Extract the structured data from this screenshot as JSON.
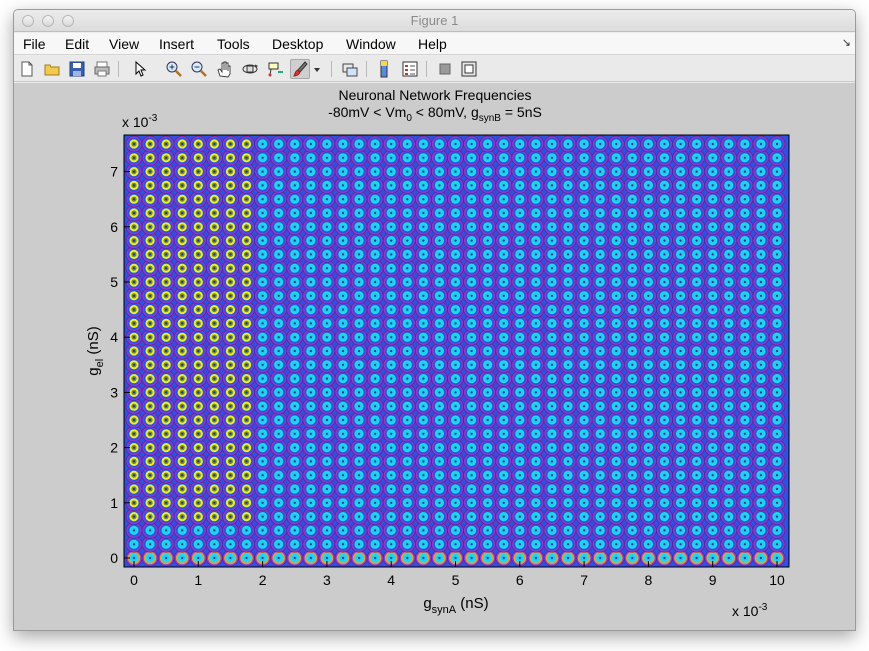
{
  "window": {
    "title": "Figure 1"
  },
  "menu": {
    "file": "File",
    "edit": "Edit",
    "view": "View",
    "insert": "Insert",
    "tools": "Tools",
    "desktop": "Desktop",
    "window": "Window",
    "help": "Help"
  },
  "toolbar": {
    "icons": [
      "new-figure-icon",
      "open-file-icon",
      "save-icon",
      "print-icon",
      "pointer-icon",
      "zoom-in-icon",
      "zoom-out-icon",
      "pan-icon",
      "rotate-3d-icon",
      "data-cursor-icon",
      "brush-icon",
      "dropdown-arrow-icon",
      "link-plot-icon",
      "insert-colorbar-icon",
      "insert-legend-icon",
      "hide-plot-tools-icon",
      "show-plot-tools-icon"
    ]
  },
  "chart_data": {
    "type": "scatter",
    "title_line1": "Neuronal Network Frequencies",
    "title_line2": {
      "pre": "-80mV < Vm",
      "sub0": "0",
      "mid": " < 80mV, g",
      "sub1": "synB",
      "post": " = 5nS"
    },
    "xlabel": {
      "g": "g",
      "sub": "synA",
      "unit": "  (nS)"
    },
    "ylabel": {
      "g": "g",
      "sub": "el",
      "unit": "  (nS)"
    },
    "x_multiplier": {
      "base": "x 10",
      "exp": "-3"
    },
    "y_multiplier": {
      "base": "x 10",
      "exp": "-3"
    },
    "x_ticks": [
      "0",
      "1",
      "2",
      "3",
      "4",
      "5",
      "6",
      "7",
      "8",
      "9",
      "10"
    ],
    "y_ticks": [
      "0",
      "1",
      "2",
      "3",
      "4",
      "5",
      "6",
      "7"
    ],
    "xlim": [
      0,
      0.01
    ],
    "ylim": [
      0,
      0.0075
    ],
    "grid": false,
    "grid_step_x": 0.00025,
    "grid_step_y": 0.00025,
    "marker": "concentric circles",
    "colors": {
      "background_region": "#22c8ee",
      "low_region": "#e8ef3a",
      "ring_outer": "#8a3ccc",
      "ring_mid": "#3050e0",
      "ring_inner": "#20d8f0",
      "center": "#163a9a",
      "bottom_row_accent": "#e0a040"
    },
    "regions": [
      {
        "name": "yellow",
        "description_x_max": 0.0018,
        "y_range": [
          0.0007,
          0.0075
        ],
        "boundary_slope": 0.0013
      }
    ]
  }
}
